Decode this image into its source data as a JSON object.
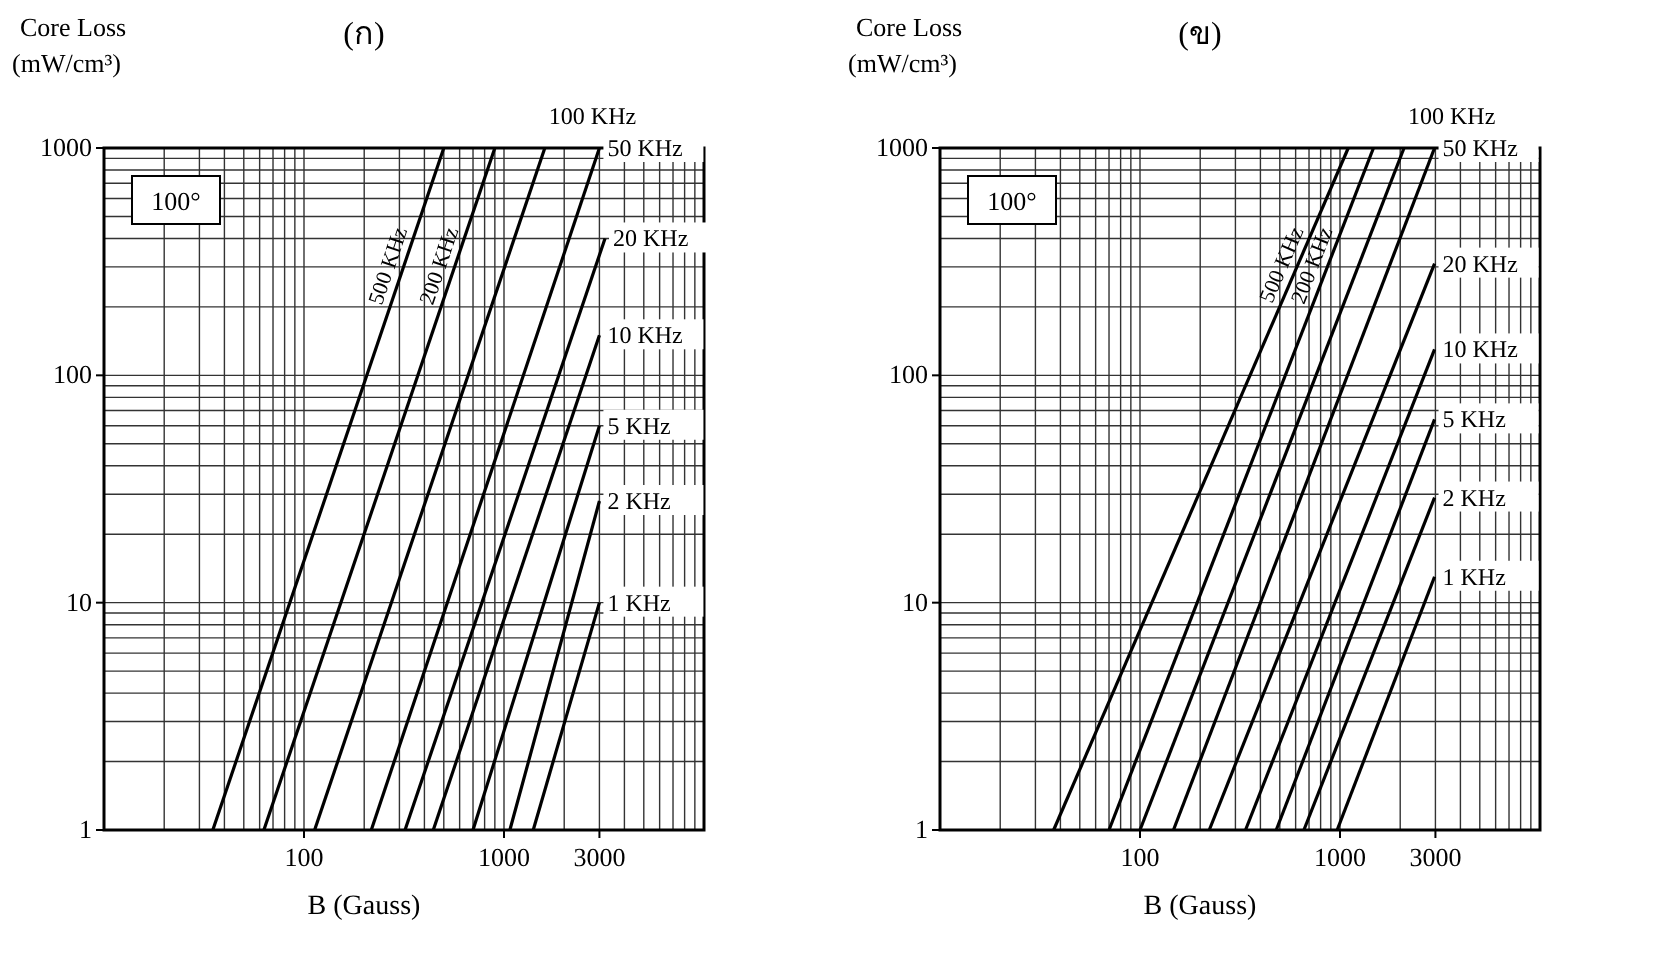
{
  "chart_data": [
    {
      "type": "line",
      "title": "(ก)",
      "xlabel": "B (Gauss)",
      "ylabel": "Core Loss (mW/cm³)",
      "log": "xy",
      "xlim": [
        10,
        10000
      ],
      "ylim": [
        1,
        1000
      ],
      "xticks": [
        100,
        1000,
        3000
      ],
      "yticks": [
        1,
        10,
        100,
        1000
      ],
      "grid": true,
      "legend": false,
      "line_style": "solid",
      "annotations": [
        "100°"
      ],
      "series": [
        {
          "name": "500 KHz",
          "color": "#000000",
          "x": [
            35,
            500
          ],
          "values": [
            1,
            1000
          ]
        },
        {
          "name": "200 KHz",
          "color": "#000000",
          "x": [
            63,
            900
          ],
          "values": [
            1,
            1000
          ]
        },
        {
          "name": "100 KHz",
          "color": "#000000",
          "x": [
            113,
            1600
          ],
          "values": [
            1,
            1000
          ]
        },
        {
          "name": "50 KHz",
          "color": "#000000",
          "x": [
            217,
            3000
          ],
          "values": [
            1,
            1000
          ]
        },
        {
          "name": "20 KHz",
          "color": "#000000",
          "x": [
            320,
            3200
          ],
          "values": [
            1,
            400
          ]
        },
        {
          "name": "10 KHz",
          "color": "#000000",
          "x": [
            443,
            3000
          ],
          "values": [
            1,
            150
          ]
        },
        {
          "name": "5 KHz",
          "color": "#000000",
          "x": [
            700,
            3000
          ],
          "values": [
            1,
            60
          ]
        },
        {
          "name": "2 KHz",
          "color": "#000000",
          "x": [
            1070,
            3000
          ],
          "values": [
            1,
            28
          ]
        },
        {
          "name": "1 KHz",
          "color": "#000000",
          "x": [
            1400,
            3000
          ],
          "values": [
            1,
            10
          ]
        }
      ]
    },
    {
      "type": "line",
      "title": "(ข)",
      "xlabel": "B (Gauss)",
      "ylabel": "Core Loss (mW/cm³)",
      "log": "xy",
      "xlim": [
        10,
        10000
      ],
      "ylim": [
        1,
        1000
      ],
      "xticks": [
        100,
        1000,
        3000
      ],
      "yticks": [
        1,
        10,
        100,
        1000
      ],
      "grid": true,
      "legend": false,
      "line_style": "solid",
      "annotations": [
        "100°"
      ],
      "series": [
        {
          "name": "500 KHz",
          "color": "#000000",
          "x": [
            37,
            1100
          ],
          "values": [
            1,
            1000
          ]
        },
        {
          "name": "200 KHz",
          "color": "#000000",
          "x": [
            70,
            1470
          ],
          "values": [
            1,
            1000
          ]
        },
        {
          "name": "100 KHz",
          "color": "#000000",
          "x": [
            100,
            2090
          ],
          "values": [
            1,
            1000
          ]
        },
        {
          "name": "50 KHz",
          "color": "#000000",
          "x": [
            147,
            2970
          ],
          "values": [
            1,
            1000
          ]
        },
        {
          "name": "20 KHz",
          "color": "#000000",
          "x": [
            222,
            2970
          ],
          "values": [
            1,
            310
          ]
        },
        {
          "name": "10 KHz",
          "color": "#000000",
          "x": [
            337,
            2970
          ],
          "values": [
            1,
            130
          ]
        },
        {
          "name": "5 KHz",
          "color": "#000000",
          "x": [
            480,
            2970
          ],
          "values": [
            1,
            64
          ]
        },
        {
          "name": "2 KHz",
          "color": "#000000",
          "x": [
            660,
            2970
          ],
          "values": [
            1,
            29
          ]
        },
        {
          "name": "1 KHz",
          "color": "#000000",
          "x": [
            968,
            2970
          ],
          "values": [
            1,
            13
          ]
        }
      ]
    }
  ]
}
